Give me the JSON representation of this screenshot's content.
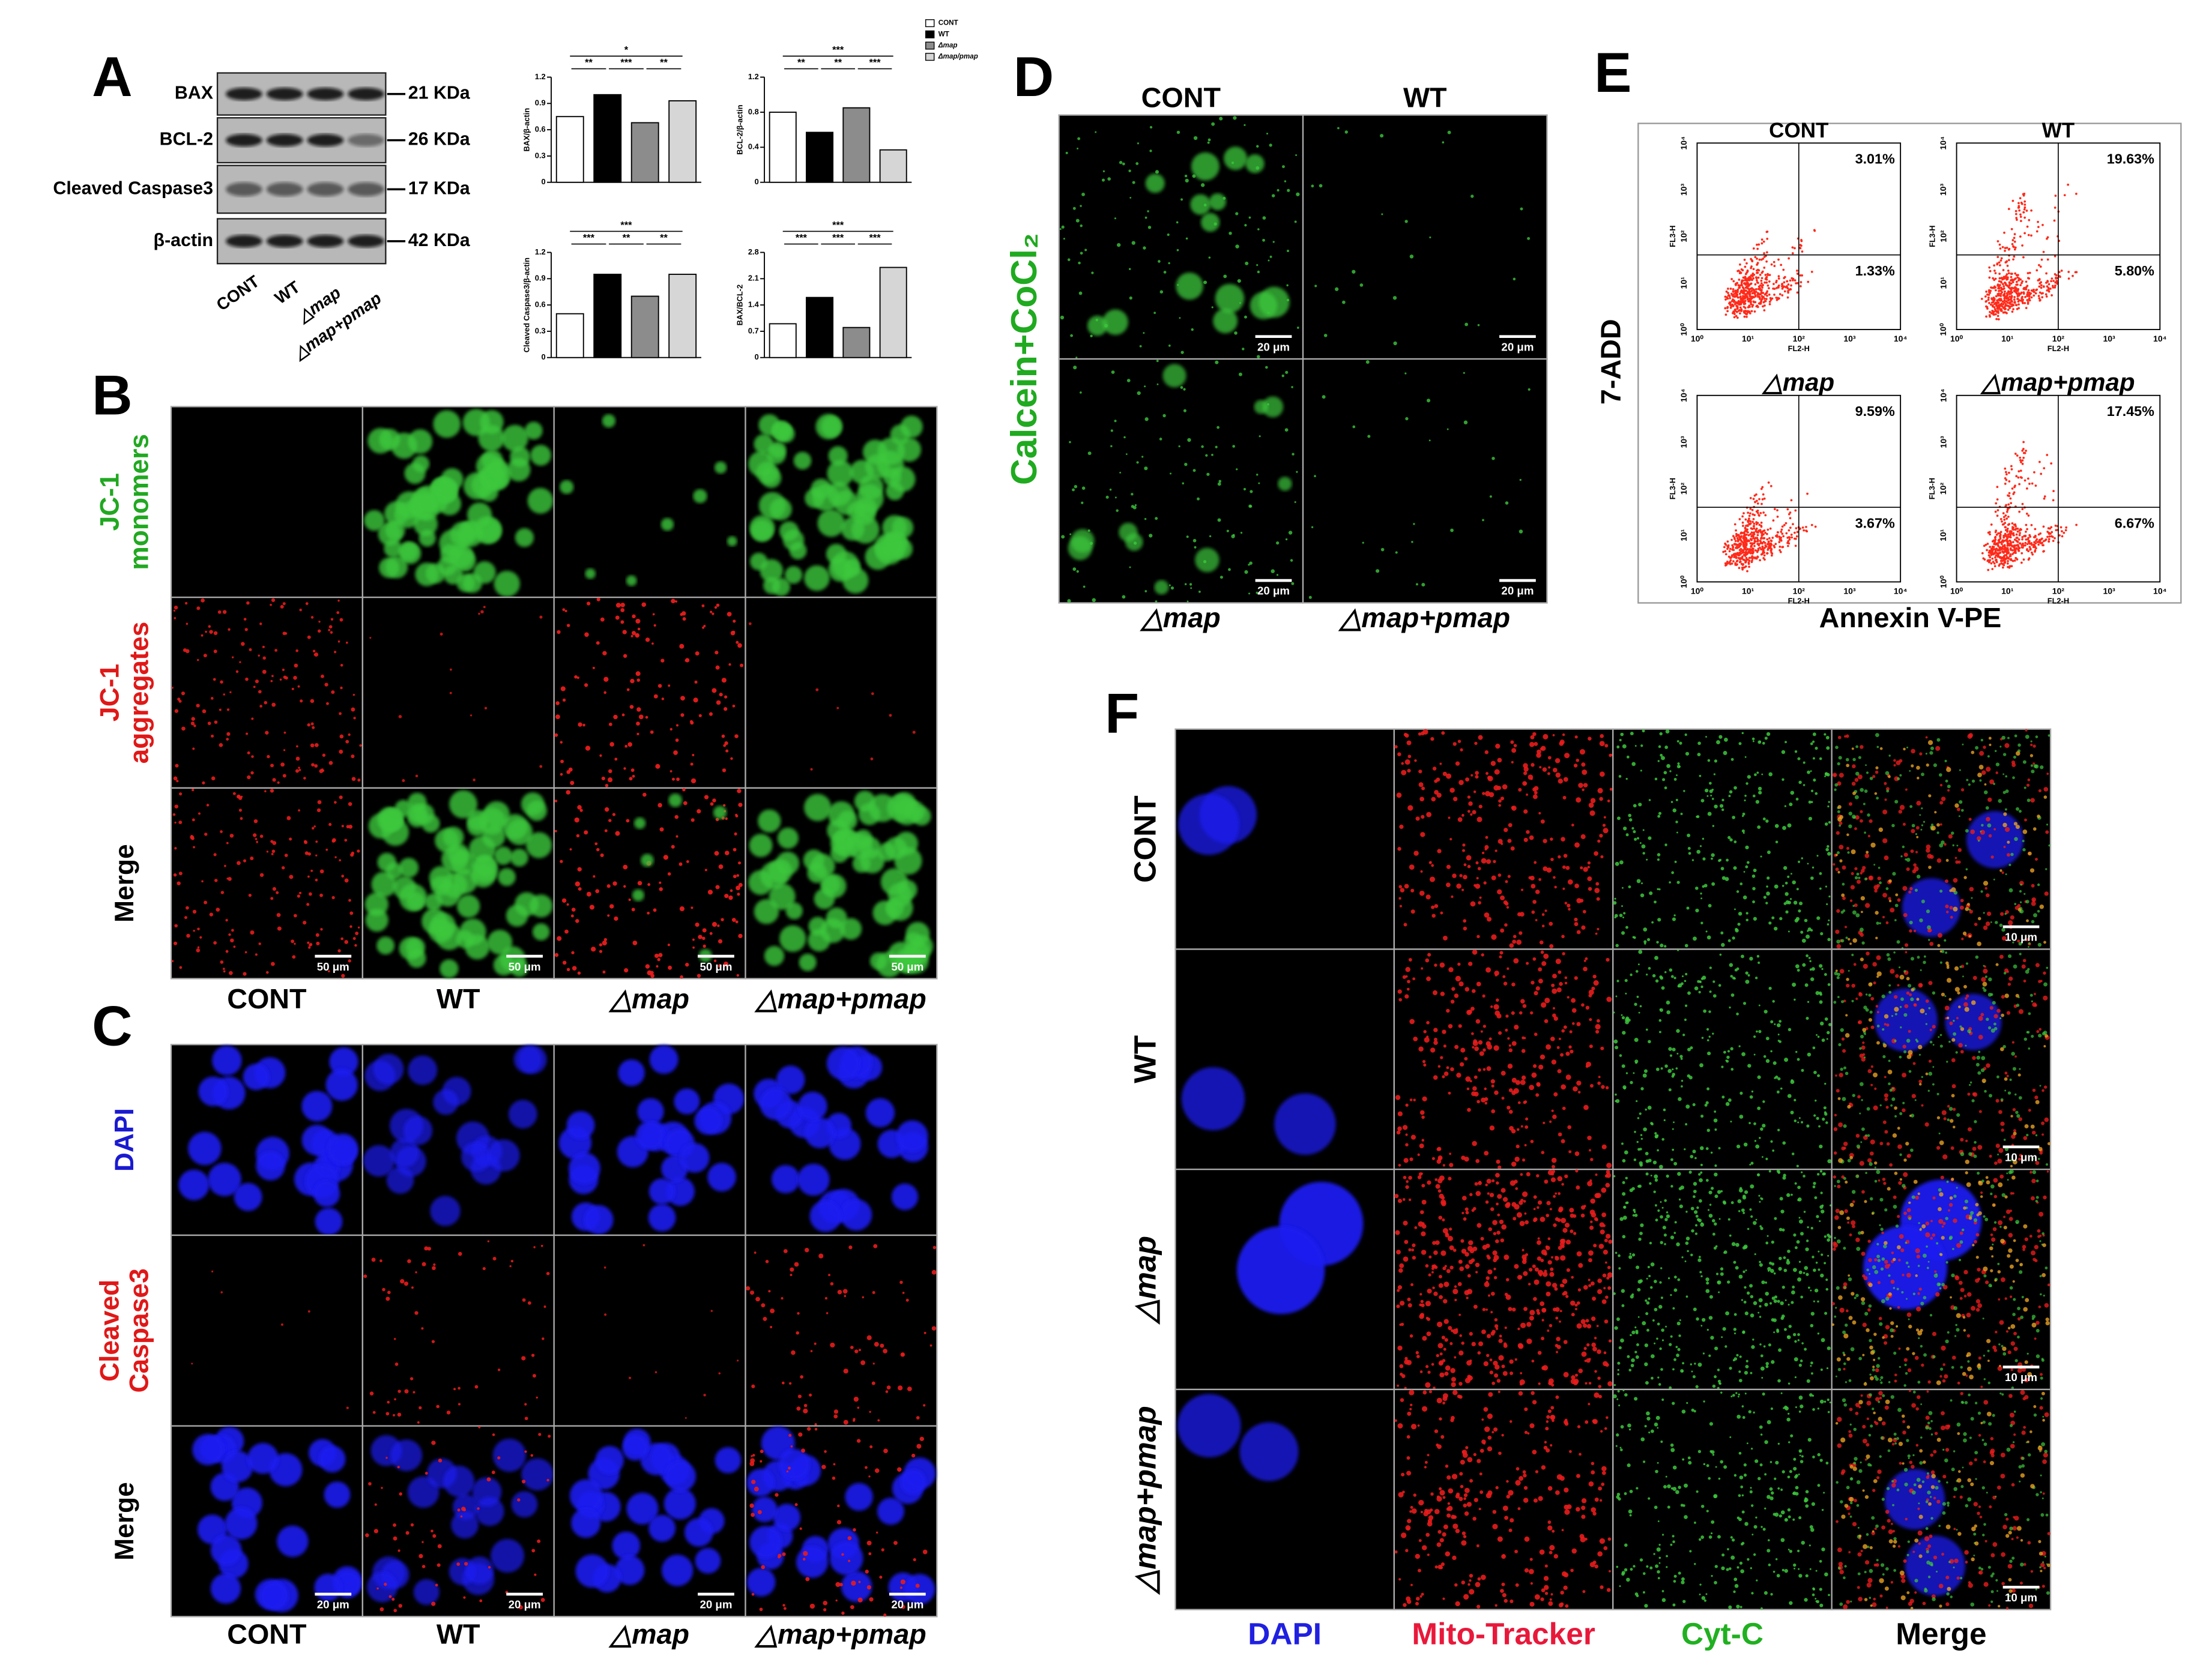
{
  "A": {
    "letter": "A",
    "bands": [
      "BAX",
      "BCL-2",
      "Cleaved Caspase3",
      "β-actin"
    ],
    "sizes": [
      "21 KDa",
      "26 KDa",
      "17 KDa",
      "42 KDa"
    ],
    "lanes": [
      "CONT",
      "WT",
      "△map",
      "△map+pmap"
    ]
  },
  "chart_legend": {
    "names": [
      "CONT",
      "WT",
      "Δmap",
      "Δmap/pmap"
    ],
    "colors": [
      "#ffffff",
      "#000000",
      "#8c8c8c",
      "#d6d6d6"
    ]
  },
  "chart_data": [
    {
      "type": "bar",
      "ylabel": "BAX/β-actin",
      "values": [
        0.75,
        1.0,
        0.68,
        0.93
      ],
      "ylim": [
        0,
        1.2
      ],
      "yticks": [
        0,
        0.3,
        0.6,
        0.9,
        1.2
      ],
      "significance": {
        "top": "*",
        "pairs": [
          "**",
          "***",
          "**"
        ]
      }
    },
    {
      "type": "bar",
      "ylabel": "BCL-2/β-actin",
      "values": [
        0.8,
        0.57,
        0.85,
        0.37
      ],
      "ylim": [
        0,
        1.2
      ],
      "yticks": [
        0,
        0.4,
        0.8,
        1.2
      ],
      "significance": {
        "top": "***",
        "pairs": [
          "**",
          "**",
          "***"
        ]
      }
    },
    {
      "type": "bar",
      "ylabel": "Cleaved Caspase3/β-actin",
      "values": [
        0.5,
        0.95,
        0.7,
        0.95
      ],
      "ylim": [
        0,
        1.2
      ],
      "yticks": [
        0,
        0.3,
        0.6,
        0.9,
        1.2
      ],
      "significance": {
        "top": "***",
        "pairs": [
          "***",
          "**",
          "**"
        ]
      }
    },
    {
      "type": "bar",
      "ylabel": "BAX/BCL-2",
      "values": [
        0.9,
        1.6,
        0.8,
        2.4
      ],
      "ylim": [
        0,
        2.8
      ],
      "yticks": [
        0,
        0.7,
        1.4,
        2.1,
        2.8
      ],
      "significance": {
        "top": "***",
        "pairs": [
          "***",
          "***",
          "***"
        ]
      }
    }
  ],
  "B": {
    "letter": "B",
    "rows": [
      {
        "lines": [
          "JC-1",
          "monomers"
        ],
        "color": "#21a821"
      },
      {
        "lines": [
          "JC-1",
          "aggregates"
        ],
        "color": "#e01818"
      },
      {
        "lines": [
          "Merge"
        ],
        "color": "#000000"
      }
    ],
    "cols": [
      "CONT",
      "WT",
      "△map",
      "△map+pmap"
    ],
    "scale": "50 μm"
  },
  "C": {
    "letter": "C",
    "rows": [
      {
        "lines": [
          "DAPI"
        ],
        "color": "#1a1ad0"
      },
      {
        "lines": [
          "Cleaved",
          "Caspase3"
        ],
        "color": "#e01818"
      },
      {
        "lines": [
          "Merge"
        ],
        "color": "#000000"
      }
    ],
    "cols": [
      "CONT",
      "WT",
      "△map",
      "△map+pmap"
    ],
    "scale": "20 μm"
  },
  "D": {
    "letter": "D",
    "ylabel": "Calcein+CoCl₂",
    "ylabel_color": "#1faa1f",
    "top": [
      "CONT",
      "WT"
    ],
    "bottom": [
      "△map",
      "△map+pmap"
    ],
    "scale": "20 μm"
  },
  "E": {
    "letter": "E",
    "plots": [
      {
        "title": "CONT",
        "upper": "3.01%",
        "lower": "1.33%"
      },
      {
        "title": "WT",
        "upper": "19.63%",
        "lower": "5.80%"
      },
      {
        "title": "△map",
        "upper": "9.59%",
        "lower": "3.67%"
      },
      {
        "title": "△map+pmap",
        "upper": "17.45%",
        "lower": "6.67%"
      }
    ],
    "xlabel": "Annexin V-PE",
    "ylabel": "7-ADD",
    "x_axis": "FL2-H",
    "y_axis": "FL3-H",
    "ticks": [
      "10⁰",
      "10¹",
      "10²",
      "10³",
      "10⁴"
    ]
  },
  "F": {
    "letter": "F",
    "rows": [
      "CONT",
      "WT",
      "△map",
      "△map+pmap"
    ],
    "cols": [
      {
        "name": "DAPI",
        "color": "#2020e0"
      },
      {
        "name": "Mito-Tracker",
        "color": "#e8183a"
      },
      {
        "name": "Cyt-C",
        "color": "#20b020"
      },
      {
        "name": "Merge",
        "color": "#000000"
      }
    ],
    "scale": "10 μm"
  }
}
